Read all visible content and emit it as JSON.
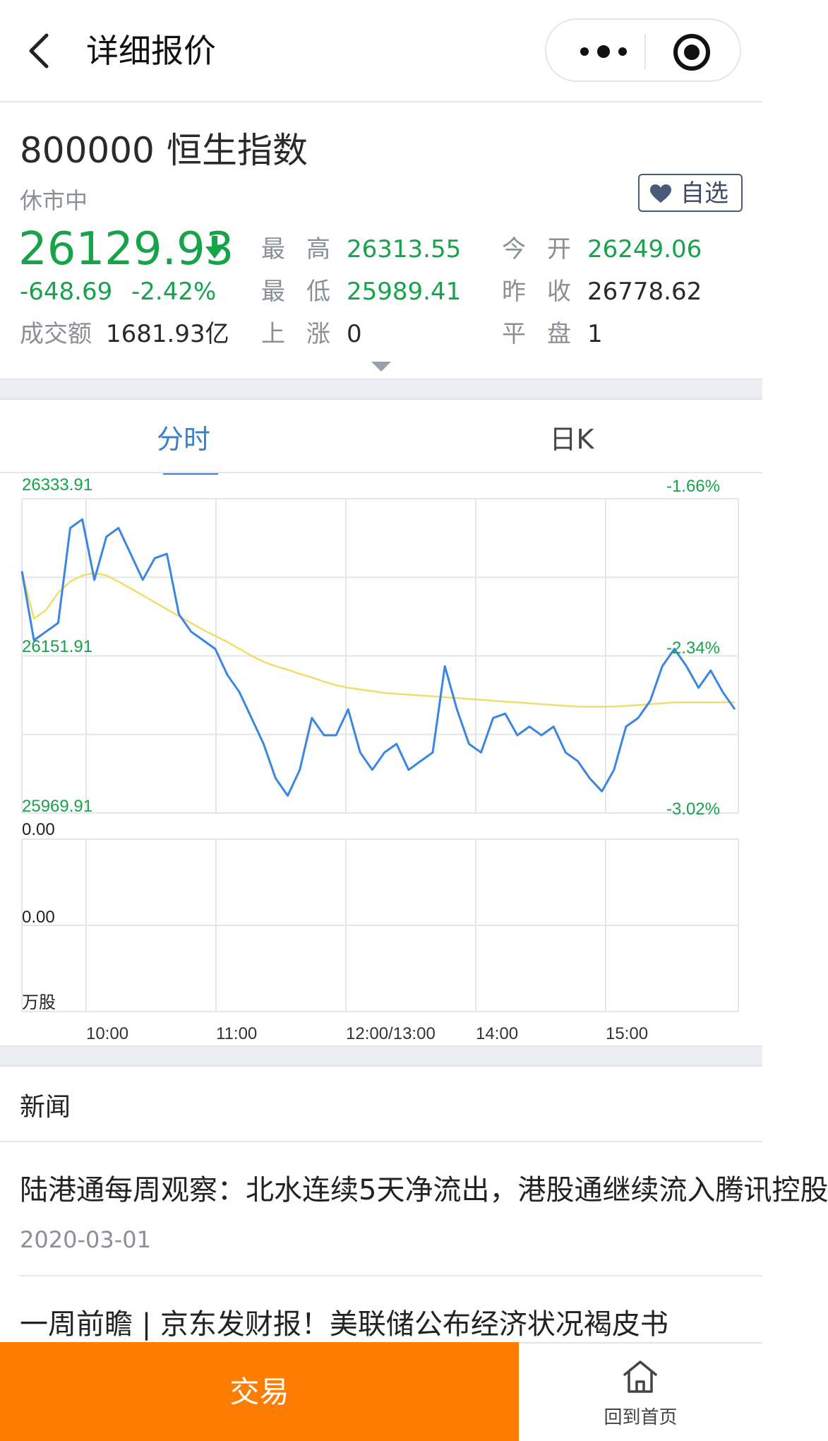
{
  "nav": {
    "title": "详细报价",
    "back_icon": "chevron-left-icon",
    "more_icon": "more-dots-icon",
    "close_icon": "target-circle-icon"
  },
  "quote": {
    "code": "800000",
    "name": "恒生指数",
    "status": "休市中",
    "favorite_label": "自选",
    "price": "26129.93",
    "change": "-648.69",
    "change_pct": "-2.42%",
    "turnover_label": "成交额",
    "turnover_value": "1681.93亿",
    "stats": [
      {
        "label": "最高",
        "value": "26313.55",
        "color": "#17a34a"
      },
      {
        "label": "今开",
        "value": "26249.06",
        "color": "#17a34a"
      },
      {
        "label": "最低",
        "value": "25989.41",
        "color": "#17a34a"
      },
      {
        "label": "昨收",
        "value": "26778.62",
        "color": "#2a2a2a"
      },
      {
        "label": "上涨",
        "value": "0",
        "color": "#2a2a2a"
      },
      {
        "label": "平盘",
        "value": "1",
        "color": "#2a2a2a"
      }
    ],
    "down_color": "#17a34a"
  },
  "tabs": [
    {
      "label": "分时",
      "active": true
    },
    {
      "label": "日K",
      "active": false
    }
  ],
  "chart_data": {
    "type": "line",
    "ylim": [
      25969.91,
      26333.91
    ],
    "y_ticks_left": [
      "26333.91",
      "26151.91",
      "25969.91"
    ],
    "y_ticks_right": [
      "-1.66%",
      "-2.34%",
      "-3.02%"
    ],
    "volume_ticks": [
      "0.00",
      "0.00"
    ],
    "volume_unit": "万股",
    "x_ticks": [
      "10:00",
      "11:00",
      "12:00/13:00",
      "14:00",
      "15:00"
    ],
    "grid": true,
    "series": [
      {
        "color": "#3a86e0",
        "values": [
          26250,
          26170,
          26180,
          26190,
          26300,
          26310,
          26240,
          26290,
          26300,
          26270,
          26240,
          26265,
          26270,
          26200,
          26180,
          26170,
          26160,
          26130,
          26110,
          26080,
          26050,
          26010,
          25990,
          26020,
          26080,
          26060,
          26060,
          26090,
          26040,
          26020,
          26040,
          26050,
          26020,
          26030,
          26040,
          26140,
          26090,
          26050,
          26040,
          26080,
          26085,
          26060,
          26070,
          26060,
          26070,
          26040,
          26030,
          26010,
          25995,
          26020,
          26070,
          26080,
          26100,
          26140,
          26160,
          26140,
          26115,
          26135,
          26110,
          26090
        ]
      },
      {
        "color": "#f1dc6e",
        "values": [
          26250,
          26195,
          26205,
          26225,
          26238,
          26245,
          26248,
          26245,
          26238,
          26230,
          26222,
          26214,
          26206,
          26198,
          26190,
          26182,
          26175,
          26168,
          26160,
          26152,
          26145,
          26140,
          26136,
          26131,
          26127,
          26122,
          26118,
          26115,
          26113,
          26111,
          26109,
          26108,
          26107,
          26106,
          26105,
          26104,
          26103,
          26102,
          26101,
          26100,
          26099,
          26098,
          26097,
          26096,
          26095,
          26094,
          26093,
          26093,
          26093,
          26093,
          26094,
          26095,
          26096,
          26097,
          26098,
          26098,
          26098,
          26098,
          26098,
          26098
        ]
      }
    ]
  },
  "news": {
    "title": "新闻",
    "items": [
      {
        "headline": "陆港通每周观察：北水连续5天净流出，港股通继续流入腾讯控股",
        "date": "2020-03-01"
      },
      {
        "headline": "一周前瞻 | 京东发财报！美联储公布经济状况褐皮书",
        "date": ""
      }
    ]
  },
  "bottom": {
    "trade_label": "交易",
    "home_label": "回到首页",
    "trade_color": "#fd7d00"
  }
}
